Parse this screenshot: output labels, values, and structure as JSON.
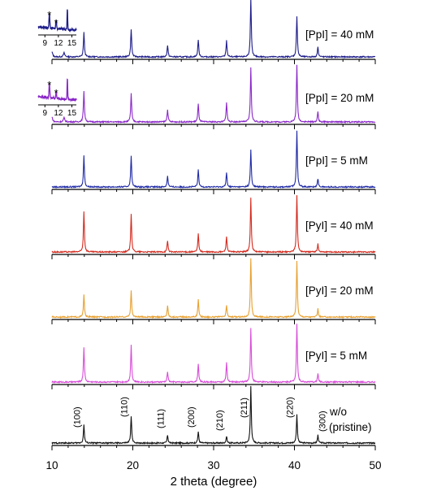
{
  "chart_data": {
    "type": "line",
    "title": "",
    "xlabel": "2 theta (degree)",
    "ylabel": "",
    "xlim": [
      10,
      50
    ],
    "x_ticks": [
      "10",
      "20",
      "30",
      "40",
      "50"
    ],
    "grid": false,
    "legend": "inline labels to the right of each trace",
    "peak_positions": [
      13.95,
      19.8,
      24.3,
      28.1,
      31.6,
      34.6,
      40.3,
      42.9
    ],
    "peak_labels": [
      "(100)",
      "(110)",
      "(111)",
      "(200)",
      "(210)",
      "(211)",
      "(220)",
      "(300)"
    ],
    "series": [
      {
        "name": "[PpI] = 40 mM",
        "color": "#1e1d8a",
        "peak_heights": [
          0.42,
          0.48,
          0.2,
          0.3,
          0.28,
          1.0,
          0.7,
          0.18
        ]
      },
      {
        "name": "[PpI] = 20 mM",
        "color": "#8a27c8",
        "peak_heights": [
          0.55,
          0.5,
          0.22,
          0.32,
          0.35,
          0.95,
          1.0,
          0.18
        ]
      },
      {
        "name": "[PpI] = 5 mM",
        "color": "#1f2aa6",
        "peak_heights": [
          0.55,
          0.55,
          0.2,
          0.3,
          0.25,
          0.65,
          1.0,
          0.15
        ]
      },
      {
        "name": "[PyI] = 40 mM",
        "color": "#d42a1e",
        "peak_heights": [
          0.72,
          0.68,
          0.2,
          0.33,
          0.28,
          0.95,
          1.0,
          0.15
        ]
      },
      {
        "name": "[PyI] = 20 mM",
        "color": "#e8a030",
        "peak_heights": [
          0.38,
          0.45,
          0.2,
          0.3,
          0.2,
          1.0,
          0.95,
          0.14
        ]
      },
      {
        "name": "[PyI] = 5 mM",
        "color": "#d84cd8",
        "peak_heights": [
          0.6,
          0.64,
          0.18,
          0.32,
          0.33,
          0.92,
          1.0,
          0.15
        ]
      },
      {
        "name": "w/o (pristine)",
        "name_lines": [
          "w/o",
          "(pristine)"
        ],
        "color": "#111111",
        "peak_heights": [
          0.32,
          0.48,
          0.14,
          0.2,
          0.12,
          1.0,
          0.5,
          0.14
        ]
      }
    ],
    "insets": [
      {
        "series": "[PpI] = 40 mM",
        "color": "#1e1d8a",
        "x_ticks": [
          "9",
          "12",
          "15"
        ],
        "xlim": [
          7.5,
          16
        ],
        "markers": [
          {
            "x": 10.0,
            "text": "*"
          },
          {
            "x": 11.5,
            "text": "*"
          }
        ],
        "peak_x": 14.0
      },
      {
        "series": "[PpI] = 20 mM",
        "color": "#8a27c8",
        "x_ticks": [
          "9",
          "12",
          "15"
        ],
        "xlim": [
          7.5,
          16
        ],
        "markers": [
          {
            "x": 10.0,
            "text": "*"
          },
          {
            "x": 11.5,
            "text": "*"
          }
        ],
        "peak_x": 14.0
      }
    ]
  }
}
